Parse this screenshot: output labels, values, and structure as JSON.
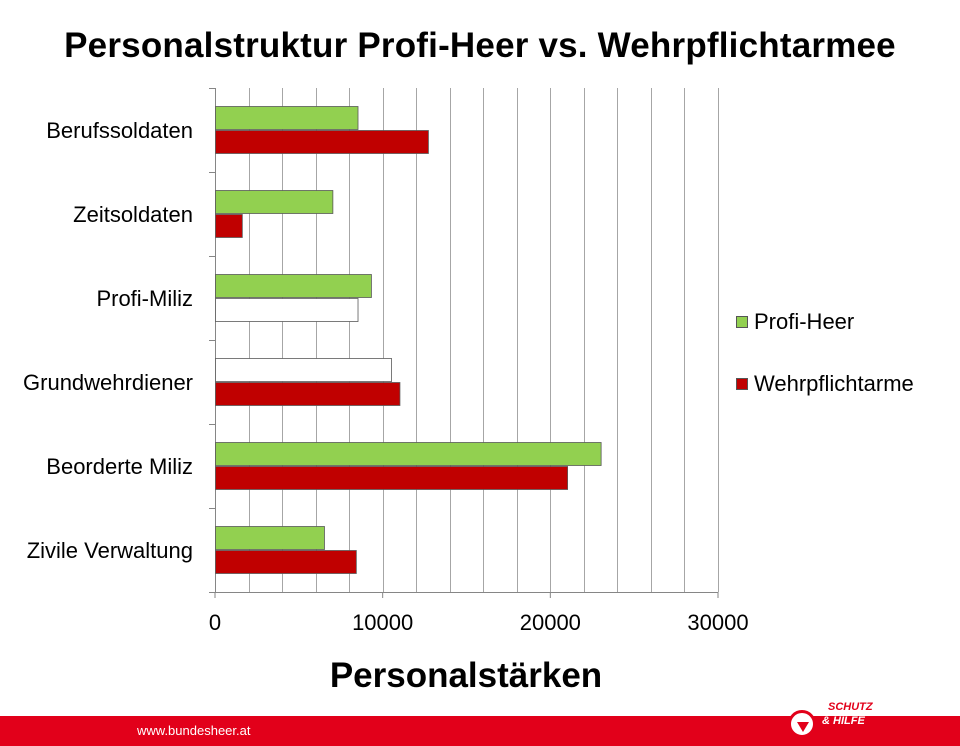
{
  "chart_data": {
    "type": "bar",
    "orientation": "horizontal",
    "title": "Personalstruktur Profi-Heer vs. Wehrpflichtarmee",
    "xlabel": "Personalstärken",
    "ylabel": "",
    "categories": [
      "Berufssoldaten",
      "Zeitsoldaten",
      "Profi-Miliz",
      "Grundwehrdiener",
      "Beorderte Miliz",
      "Zivile Verwaltung"
    ],
    "series": [
      {
        "name": "Profi-Heer",
        "color": "#92d050",
        "values": [
          8500,
          7000,
          9300,
          10500,
          23000,
          6500
        ]
      },
      {
        "name": "Wehrpflichtarme",
        "color": "#c00000",
        "values": [
          12700,
          1600,
          8500,
          11000,
          21000,
          8400
        ]
      }
    ],
    "hollow_bars": [
      {
        "series": 1,
        "category": 2
      },
      {
        "series": 0,
        "category": 3
      }
    ],
    "hollow_color": "#ffffff",
    "xlim": [
      0,
      30000
    ],
    "xticks": [
      0,
      10000,
      20000,
      30000
    ],
    "minor_grid_step": 2000,
    "grid": true,
    "legend_position": "right"
  },
  "footer": {
    "url": "www.bundesheer.at",
    "logo_line1": "SCHUTZ",
    "logo_line2": "& HILFE"
  }
}
